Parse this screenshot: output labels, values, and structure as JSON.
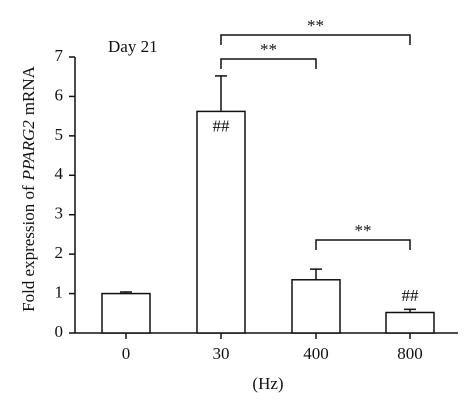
{
  "chart_data": {
    "type": "bar",
    "annotation": "Day 21",
    "x_label": "(Hz)",
    "y_label_parts": [
      "Fold expression of",
      "PPARG2",
      "mRNA"
    ],
    "y_label_italic": [
      false,
      true,
      false
    ],
    "categories": [
      "0",
      "30",
      "400",
      "800"
    ],
    "values": [
      1.0,
      5.62,
      1.35,
      0.52
    ],
    "errors": [
      0.04,
      0.9,
      0.27,
      0.08
    ],
    "bar_labels": [
      null,
      "##",
      null,
      "##"
    ],
    "brackets": [
      {
        "from": 1,
        "to": 3,
        "label": "**"
      },
      {
        "from": 1,
        "to": 2,
        "label": "**"
      },
      {
        "from": 2,
        "to": 3,
        "label": "**"
      }
    ],
    "color": "#ffffff",
    "ylim": [
      0,
      7
    ],
    "yticks": [
      0,
      1,
      2,
      3,
      4,
      5,
      6,
      7
    ]
  }
}
